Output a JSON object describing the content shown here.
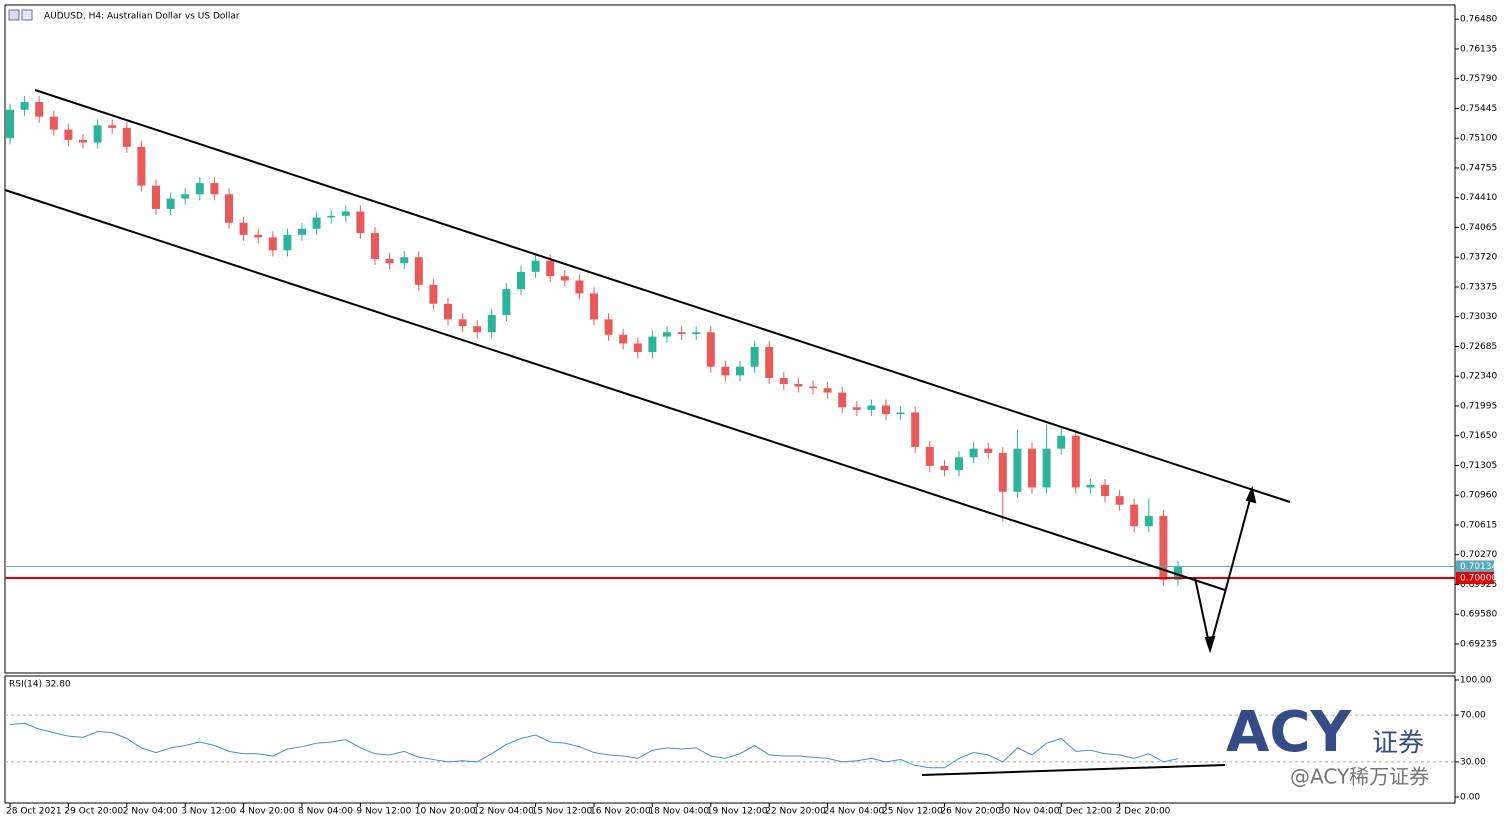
{
  "chart_data": [
    {
      "type": "candlestick",
      "title": "AUDUSD, H4:  Australian Dollar vs US Dollar",
      "categories": [
        "28 Oct 2021",
        null,
        null,
        null,
        "29 Oct 20:00",
        null,
        null,
        null,
        "2 Nov 04:00",
        null,
        null,
        null,
        "3 Nov 12:00",
        null,
        null,
        null,
        "4 Nov 20:00",
        null,
        null,
        null,
        "8 Nov 04:00",
        null,
        null,
        null,
        "9 Nov 12:00",
        null,
        null,
        null,
        "10 Nov 20:00",
        null,
        null,
        null,
        "12 Nov 04:00",
        null,
        null,
        null,
        "15 Nov 12:00",
        null,
        null,
        null,
        "16 Nov 20:00",
        null,
        null,
        null,
        "18 Nov 04:00",
        null,
        null,
        null,
        "19 Nov 12:00",
        null,
        null,
        null,
        "22 Nov 20:00",
        null,
        null,
        null,
        "24 Nov 04:00",
        null,
        null,
        null,
        "25 Nov 12:00",
        null,
        null,
        null,
        "26 Nov 20:00",
        null,
        null,
        null,
        "30 Nov 04:00",
        null,
        null,
        null,
        "1 Dec 12:00",
        null,
        null,
        null,
        "2 Dec 20:00",
        null,
        null,
        null,
        null
      ],
      "open": [
        0.751,
        0.7543,
        0.7552,
        0.7535,
        0.752,
        0.7508,
        0.7505,
        0.7525,
        0.7522,
        0.75,
        0.7455,
        0.7428,
        0.744,
        0.7445,
        0.7458,
        0.7445,
        0.7412,
        0.7398,
        0.7395,
        0.738,
        0.7398,
        0.7405,
        0.7418,
        0.742,
        0.7425,
        0.74,
        0.737,
        0.7365,
        0.7372,
        0.734,
        0.7318,
        0.73,
        0.7292,
        0.7285,
        0.7305,
        0.7335,
        0.7355,
        0.7368,
        0.735,
        0.7345,
        0.733,
        0.73,
        0.7282,
        0.7272,
        0.7262,
        0.728,
        0.7285,
        0.7283,
        0.7285,
        0.7245,
        0.7235,
        0.7245,
        0.7268,
        0.7232,
        0.7225,
        0.7222,
        0.722,
        0.7215,
        0.7198,
        0.7195,
        0.72,
        0.719,
        0.7192,
        0.7152,
        0.713,
        0.7125,
        0.714,
        0.715,
        0.7145,
        0.71,
        0.715,
        0.7105,
        0.715,
        0.7165,
        0.7105,
        0.7108,
        0.7095,
        0.7085,
        0.706,
        0.7072,
        0.6998
      ],
      "high": [
        0.755,
        0.7559,
        0.7559,
        0.7542,
        0.7527,
        0.7515,
        0.7532,
        0.7532,
        0.7529,
        0.7507,
        0.7462,
        0.7447,
        0.7452,
        0.7465,
        0.7465,
        0.7452,
        0.7419,
        0.7405,
        0.7402,
        0.7405,
        0.7412,
        0.7425,
        0.7427,
        0.7432,
        0.7432,
        0.7407,
        0.7377,
        0.7379,
        0.7379,
        0.7347,
        0.7325,
        0.7307,
        0.7299,
        0.7312,
        0.7342,
        0.7362,
        0.7375,
        0.7375,
        0.7357,
        0.7352,
        0.7337,
        0.7307,
        0.7289,
        0.7279,
        0.7287,
        0.7292,
        0.7292,
        0.7292,
        0.7292,
        0.7252,
        0.7252,
        0.7275,
        0.7275,
        0.7239,
        0.7232,
        0.7229,
        0.7227,
        0.7222,
        0.7205,
        0.7207,
        0.7207,
        0.7199,
        0.7199,
        0.7159,
        0.7137,
        0.7147,
        0.7157,
        0.7157,
        0.7152,
        0.7172,
        0.7157,
        0.7178,
        0.7175,
        0.7172,
        0.7115,
        0.7115,
        0.7102,
        0.7092,
        0.7092,
        0.7079,
        0.702
      ],
      "low": [
        0.7503,
        0.7536,
        0.7528,
        0.7513,
        0.7501,
        0.7498,
        0.7498,
        0.7515,
        0.7493,
        0.7448,
        0.7421,
        0.7421,
        0.7433,
        0.7438,
        0.7438,
        0.7405,
        0.7391,
        0.7388,
        0.7373,
        0.7373,
        0.7391,
        0.7398,
        0.7411,
        0.7413,
        0.7393,
        0.7363,
        0.7358,
        0.7358,
        0.7333,
        0.7311,
        0.7293,
        0.7285,
        0.7278,
        0.7278,
        0.7298,
        0.7328,
        0.7348,
        0.7343,
        0.7338,
        0.7323,
        0.7293,
        0.7275,
        0.7265,
        0.7255,
        0.7255,
        0.7273,
        0.7276,
        0.7276,
        0.7238,
        0.7228,
        0.7228,
        0.7238,
        0.7225,
        0.7218,
        0.7215,
        0.7213,
        0.7208,
        0.7191,
        0.7188,
        0.7188,
        0.7183,
        0.7183,
        0.7145,
        0.7123,
        0.7118,
        0.7118,
        0.7133,
        0.7138,
        0.7065,
        0.7093,
        0.7098,
        0.7098,
        0.7143,
        0.7098,
        0.7098,
        0.7088,
        0.7078,
        0.7053,
        0.7053,
        0.6991,
        0.6991
      ],
      "close": [
        0.7543,
        0.7552,
        0.7535,
        0.752,
        0.7508,
        0.7505,
        0.7525,
        0.7522,
        0.75,
        0.7455,
        0.7428,
        0.744,
        0.7445,
        0.7458,
        0.7445,
        0.7412,
        0.7398,
        0.7395,
        0.738,
        0.7398,
        0.7405,
        0.7418,
        0.742,
        0.7425,
        0.74,
        0.737,
        0.7365,
        0.7372,
        0.734,
        0.7318,
        0.73,
        0.7292,
        0.7285,
        0.7305,
        0.7335,
        0.7355,
        0.7368,
        0.735,
        0.7345,
        0.733,
        0.73,
        0.7282,
        0.7272,
        0.7262,
        0.728,
        0.7285,
        0.7283,
        0.7285,
        0.7245,
        0.7235,
        0.7245,
        0.7268,
        0.7232,
        0.7225,
        0.7222,
        0.722,
        0.7215,
        0.7198,
        0.7195,
        0.72,
        0.719,
        0.7192,
        0.7152,
        0.713,
        0.7125,
        0.714,
        0.715,
        0.7145,
        0.71,
        0.715,
        0.7105,
        0.715,
        0.7165,
        0.7105,
        0.7108,
        0.7095,
        0.7085,
        0.706,
        0.7072,
        0.6998,
        0.7013
      ],
      "up_color": "#2bb39b",
      "down_color": "#e85a5a",
      "ylim": [
        0.6891,
        0.7661
      ],
      "yticks": [
        {
          "value": 0.7648,
          "label": "0.76480"
        },
        0.76135,
        {
          "value": 0.7579,
          "label": "0.75790"
        },
        0.75445,
        {
          "value": 0.751,
          "label": "0.75100"
        },
        0.74755,
        {
          "value": 0.7441,
          "label": "0.74410"
        },
        0.74065,
        {
          "value": 0.7372,
          "label": "0.73720"
        },
        0.73375,
        {
          "value": 0.7303,
          "label": "0.73030"
        },
        0.72685,
        {
          "value": 0.7234,
          "label": "0.72340"
        },
        0.71995,
        {
          "value": 0.7165,
          "label": "0.71650"
        },
        0.71305,
        {
          "value": 0.7096,
          "label": "0.70960"
        },
        0.70615,
        {
          "value": 0.7027,
          "label": "0.70270"
        },
        0.69925,
        {
          "value": 0.6958,
          "label": "0.69580"
        },
        0.69235
      ],
      "hlines": [
        {
          "value": 0.70134,
          "label": "0.70134",
          "color": "#5aa9bd"
        },
        {
          "value": 0.7,
          "label": "0.70000",
          "color": "#e00000"
        }
      ]
    },
    {
      "type": "line",
      "title": "RSI(14) 32.80",
      "color": "#3d8fe0",
      "values": [
        62,
        63,
        58,
        55,
        52,
        51,
        56,
        55,
        50,
        42,
        38,
        42,
        44,
        47,
        44,
        39,
        37,
        37,
        35,
        41,
        43,
        46,
        47,
        49,
        42,
        37,
        36,
        39,
        34,
        32,
        30,
        31,
        30,
        37,
        45,
        50,
        53,
        47,
        46,
        43,
        38,
        36,
        35,
        33,
        40,
        42,
        41,
        42,
        35,
        33,
        37,
        44,
        36,
        35,
        35,
        34,
        33,
        30,
        31,
        33,
        30,
        32,
        27,
        25,
        25,
        33,
        38,
        36,
        30,
        42,
        36,
        46,
        50,
        39,
        40,
        37,
        36,
        33,
        37,
        30,
        32.8
      ],
      "ylim": [
        0,
        100
      ],
      "yticks": [
        {
          "value": 100,
          "label": "100.00"
        },
        {
          "value": 70,
          "label": "70.00"
        },
        {
          "value": 30,
          "label": "30.00"
        },
        {
          "value": 0,
          "label": "0.00"
        }
      ],
      "levels": [
        70,
        30
      ]
    }
  ],
  "watermark": {
    "logo": "ACY",
    "logo_suffix": "证券",
    "handle": "@ACY稀万证券"
  }
}
